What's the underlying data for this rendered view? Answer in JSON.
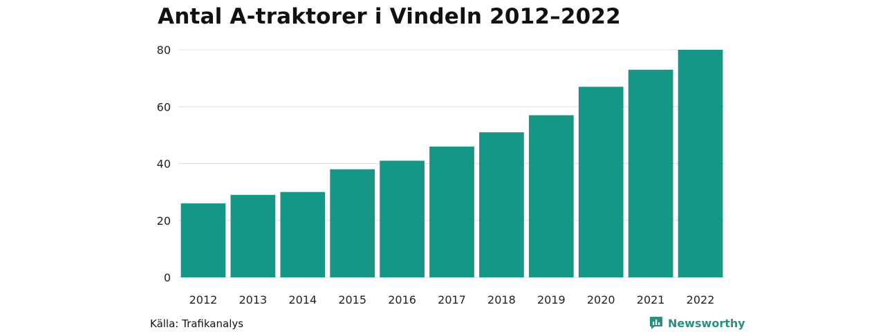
{
  "chart_data": {
    "type": "bar",
    "title": "Antal A-traktorer i Vindeln 2012–2022",
    "categories": [
      "2012",
      "2013",
      "2014",
      "2015",
      "2016",
      "2017",
      "2018",
      "2019",
      "2020",
      "2021",
      "2022"
    ],
    "values": [
      26,
      29,
      30,
      38,
      41,
      46,
      51,
      57,
      67,
      73,
      80
    ],
    "ylim": [
      0,
      80
    ],
    "yticks": [
      0,
      20,
      40,
      60,
      80
    ],
    "xlabel": "",
    "ylabel": "",
    "grid": true,
    "bar_color": "#159686",
    "grid_color": "#dcdcdc"
  },
  "footer": {
    "source": "Källa: Trafikanalys",
    "brand": "Newsworthy",
    "brand_icon": "newsworthy-logo-icon",
    "brand_color": "#2a8f80"
  }
}
